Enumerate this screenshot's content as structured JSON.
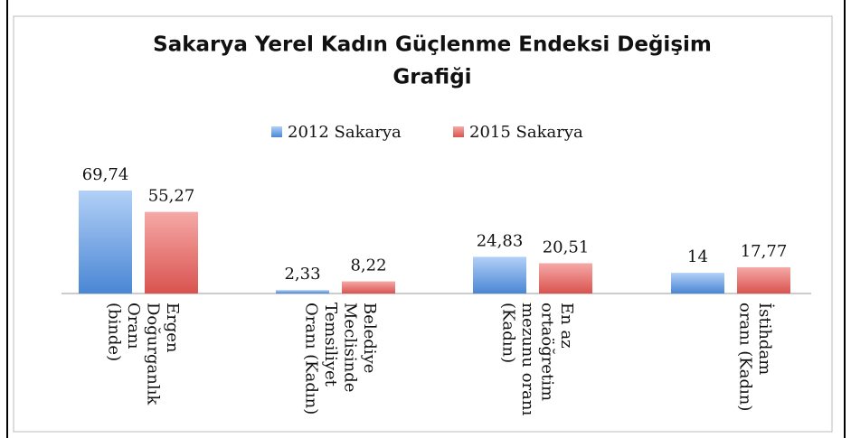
{
  "chart_data": {
    "type": "bar",
    "title": [
      "Sakarya Yerel Kadın Güçlenme Endeksi Değişim",
      "Grafiği"
    ],
    "categories": [
      [
        "Ergen",
        "Doğurganlık",
        "Oranı",
        "(binde)"
      ],
      [
        "Belediye",
        "Meclisinde",
        "Temsiliyet",
        "Oranı (Kadın)"
      ],
      [
        "En az",
        "ortaöğretim",
        "mezunu oranı",
        "(Kadın)"
      ],
      [
        "İstihdam",
        "oranı (Kadın)"
      ]
    ],
    "series": [
      {
        "name": "2012 Sakarya",
        "color": "#4a86d4",
        "values": [
          69.74,
          2.33,
          24.83,
          14
        ],
        "value_labels": [
          "69,74",
          "2,33",
          "24,83",
          "14"
        ]
      },
      {
        "name": "2015 Sakarya",
        "color": "#d9534f",
        "values": [
          55.27,
          8.22,
          20.51,
          17.77
        ],
        "value_labels": [
          "55,27",
          "8,22",
          "20,51",
          "17,77"
        ]
      }
    ],
    "legend": "top"
  }
}
